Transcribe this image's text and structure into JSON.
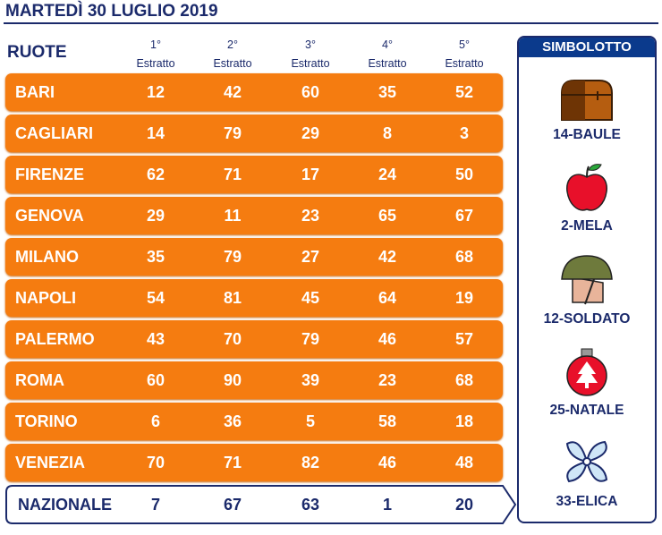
{
  "title": "MARTEDÌ 30 LUGLIO 2019",
  "header": {
    "ruote": "RUOTE",
    "columns": [
      {
        "ord": "1°",
        "label": "Estratto"
      },
      {
        "ord": "2°",
        "label": "Estratto"
      },
      {
        "ord": "3°",
        "label": "Estratto"
      },
      {
        "ord": "4°",
        "label": "Estratto"
      },
      {
        "ord": "5°",
        "label": "Estratto"
      }
    ]
  },
  "rows": [
    {
      "name": "BARI",
      "nums": [
        12,
        42,
        60,
        35,
        52
      ]
    },
    {
      "name": "CAGLIARI",
      "nums": [
        14,
        79,
        29,
        8,
        3
      ]
    },
    {
      "name": "FIRENZE",
      "nums": [
        62,
        71,
        17,
        24,
        50
      ]
    },
    {
      "name": "GENOVA",
      "nums": [
        29,
        11,
        23,
        65,
        67
      ]
    },
    {
      "name": "MILANO",
      "nums": [
        35,
        79,
        27,
        42,
        68
      ]
    },
    {
      "name": "NAPOLI",
      "nums": [
        54,
        81,
        45,
        64,
        19
      ]
    },
    {
      "name": "PALERMO",
      "nums": [
        43,
        70,
        79,
        46,
        57
      ]
    },
    {
      "name": "ROMA",
      "nums": [
        60,
        90,
        39,
        23,
        68
      ]
    },
    {
      "name": "TORINO",
      "nums": [
        6,
        36,
        5,
        58,
        18
      ]
    },
    {
      "name": "VENEZIA",
      "nums": [
        70,
        71,
        82,
        46,
        48
      ]
    }
  ],
  "nazionale": {
    "name": "NAZIONALE",
    "nums": [
      7,
      67,
      63,
      1,
      20
    ]
  },
  "simbolotto": {
    "title": "SIMBOLOTTO",
    "items": [
      {
        "label": "14-BAULE",
        "icon": "chest-icon"
      },
      {
        "label": "2-MELA",
        "icon": "apple-icon"
      },
      {
        "label": "12-SOLDATO",
        "icon": "soldier-icon"
      },
      {
        "label": "25-NATALE",
        "icon": "christmas-ornament-icon"
      },
      {
        "label": "33-ELICA",
        "icon": "propeller-icon"
      }
    ]
  },
  "colors": {
    "orange": "#f57c10",
    "navy": "#1b2a6b",
    "header_blue": "#0b3a8c"
  }
}
